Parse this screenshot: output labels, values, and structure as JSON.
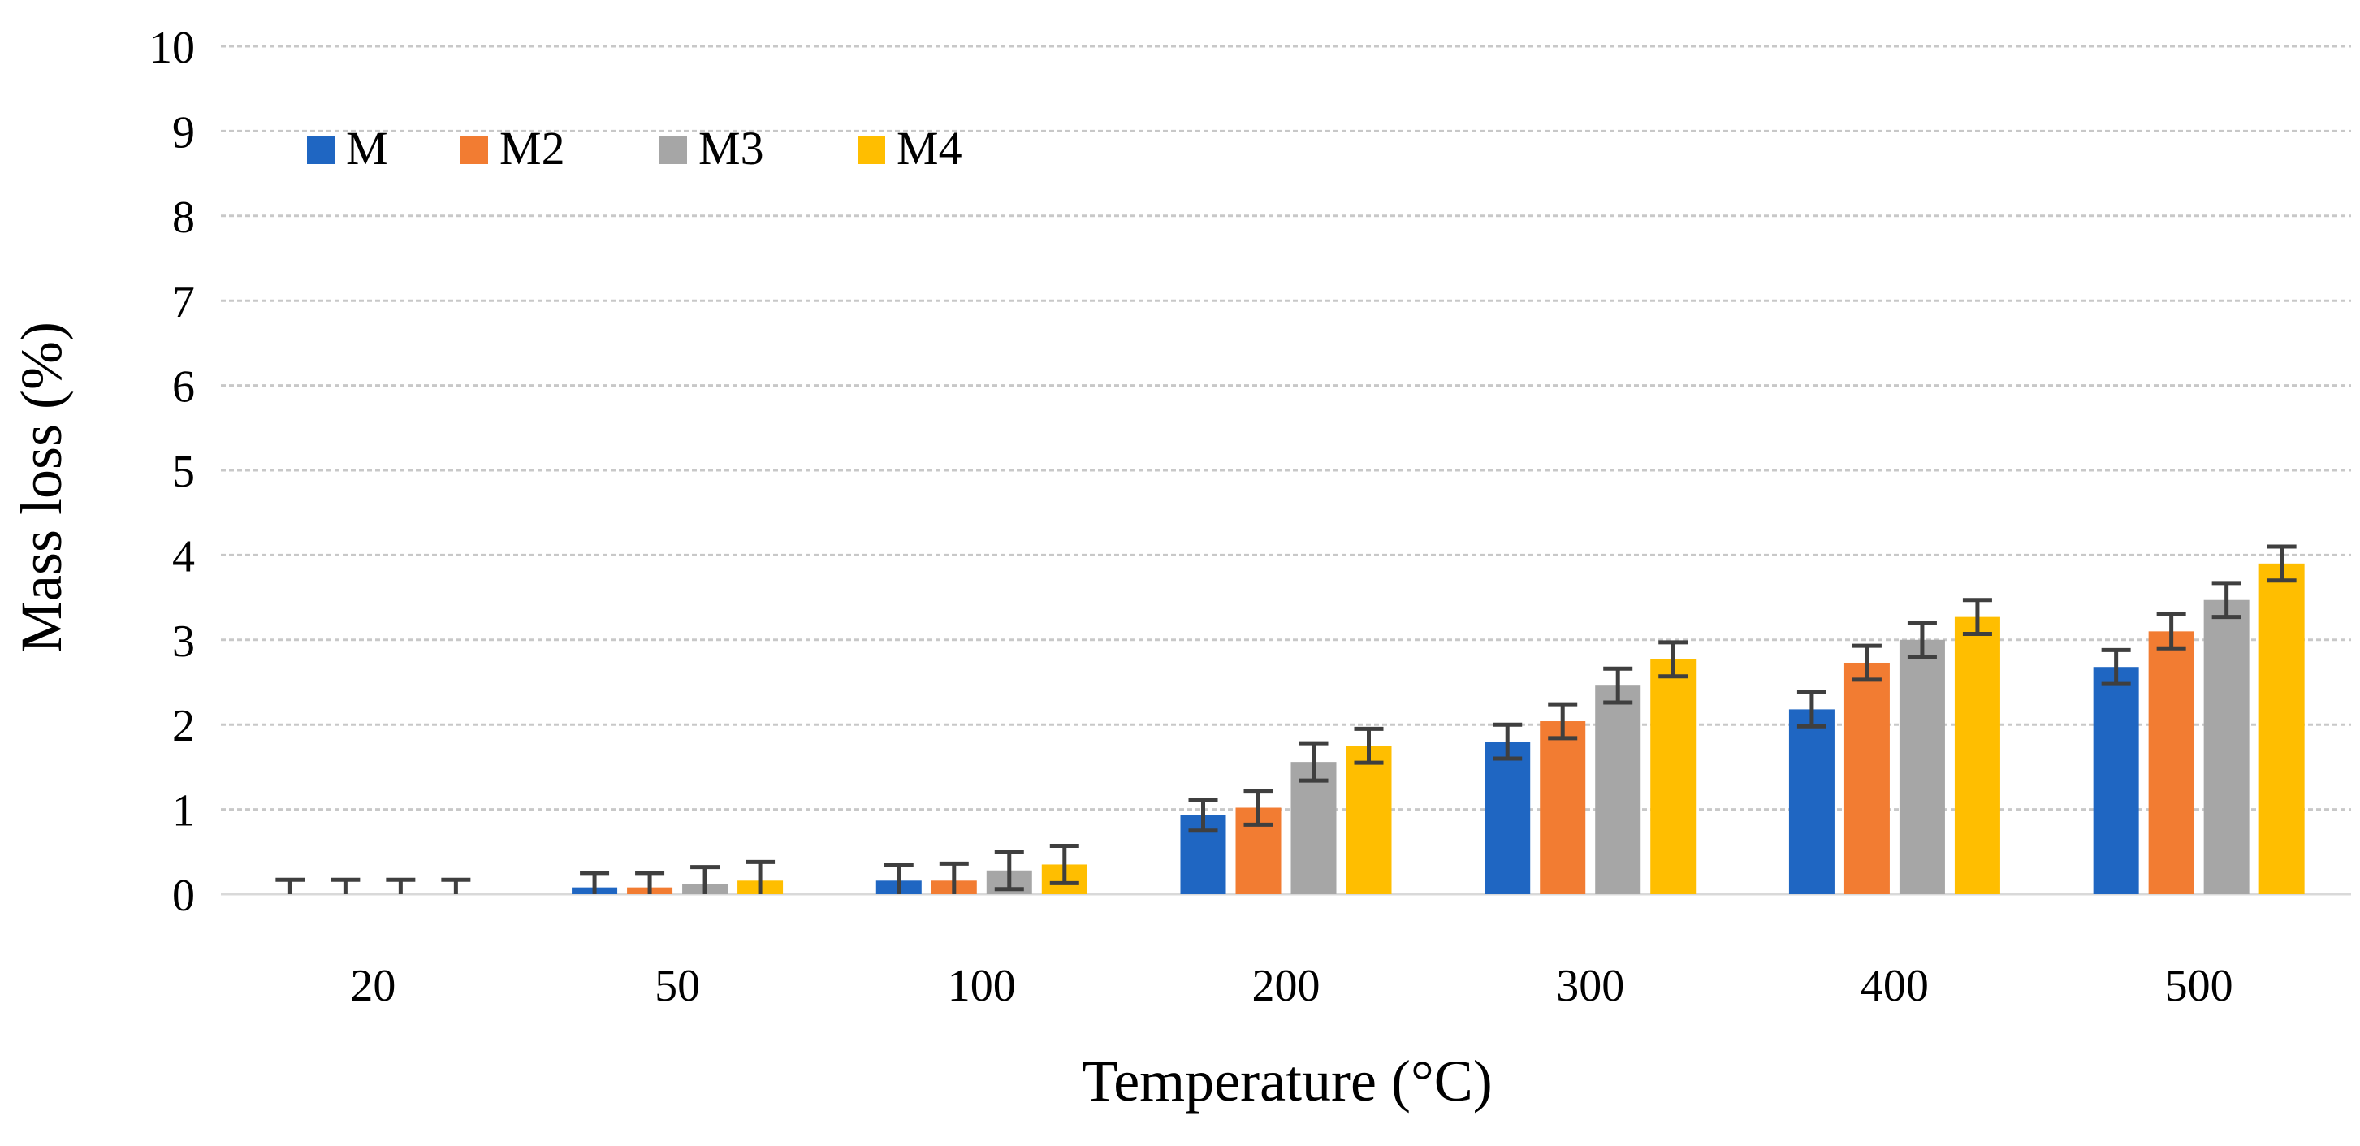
{
  "chart_data": {
    "type": "bar",
    "title": "",
    "xlabel": "Temperature (°C)",
    "ylabel": "Mass loss (%)",
    "ylim": [
      0,
      10
    ],
    "yticks": [
      "0",
      "1",
      "2",
      "3",
      "4",
      "5",
      "6",
      "7",
      "8",
      "9",
      "10"
    ],
    "grid": true,
    "legend_position": "top-left",
    "categories": [
      "20",
      "50",
      "100",
      "200",
      "300",
      "400",
      "500"
    ],
    "series": [
      {
        "name": "M",
        "color": "#1f66c2",
        "values": [
          0,
          0.08,
          0.16,
          0.93,
          1.8,
          2.18,
          2.68
        ],
        "errors": [
          0.17,
          0.17,
          0.18,
          0.18,
          0.2,
          0.2,
          0.2
        ]
      },
      {
        "name": "M2",
        "color": "#f27c32",
        "values": [
          0,
          0.08,
          0.16,
          1.02,
          2.04,
          2.73,
          3.1
        ],
        "errors": [
          0.17,
          0.17,
          0.2,
          0.2,
          0.2,
          0.2,
          0.2
        ]
      },
      {
        "name": "M3",
        "color": "#a6a6a6",
        "values": [
          0,
          0.12,
          0.28,
          1.56,
          2.46,
          3.0,
          3.47
        ],
        "errors": [
          0.17,
          0.2,
          0.22,
          0.22,
          0.2,
          0.2,
          0.2
        ]
      },
      {
        "name": "M4",
        "color": "#ffbe00",
        "values": [
          0,
          0.16,
          0.35,
          1.75,
          2.77,
          3.27,
          3.9
        ],
        "errors": [
          0.17,
          0.22,
          0.22,
          0.2,
          0.2,
          0.2,
          0.2
        ]
      }
    ]
  }
}
